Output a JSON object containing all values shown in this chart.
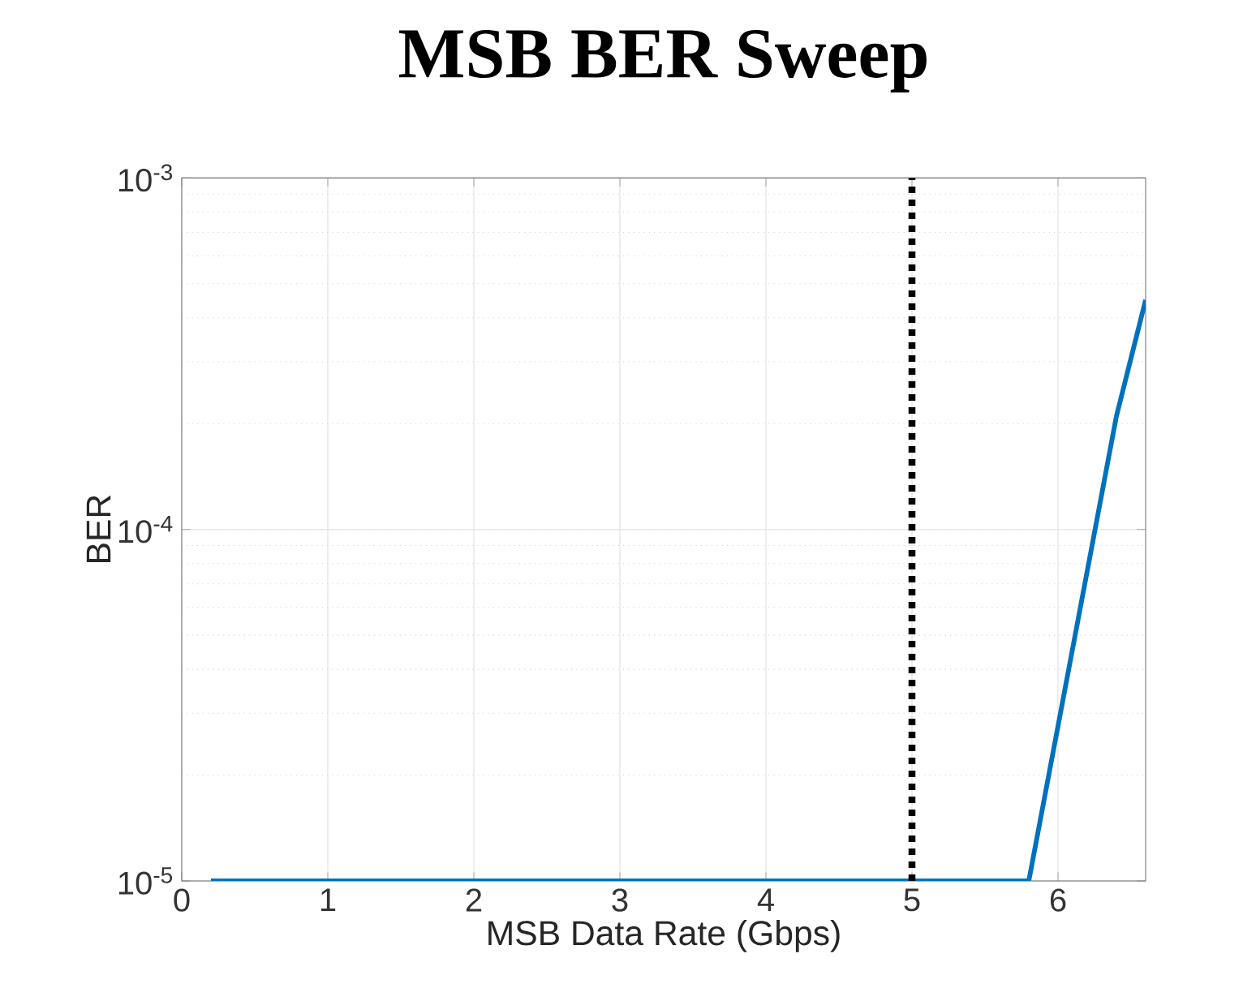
{
  "chart_data": {
    "type": "line",
    "title": "MSB BER Sweep",
    "xlabel": "MSB Data Rate (Gbps)",
    "ylabel": "BER",
    "x": [
      0.2,
      5.8,
      6.4,
      6.6
    ],
    "series": [
      {
        "color": "#0072bd",
        "values": [
          1e-05,
          1e-05,
          0.00021,
          0.00045
        ]
      }
    ],
    "xlim": [
      0,
      6.6
    ],
    "ylim": [
      1e-05,
      0.001
    ],
    "xticks": [
      0,
      1,
      2,
      3,
      4,
      5,
      6
    ],
    "yticks": [
      {
        "value": 1e-05,
        "label": "10$^{-5}$"
      },
      {
        "value": 0.0001,
        "label": "10$^{-4}$"
      },
      {
        "value": 0.001,
        "label": "10$^{-3}$"
      }
    ],
    "log": "y",
    "grid": true,
    "marker": "none",
    "line_style": "solid",
    "ref_lines": [
      {
        "axis": "x",
        "value": 5,
        "color": "#000000",
        "line_style": "dotted"
      }
    ]
  }
}
